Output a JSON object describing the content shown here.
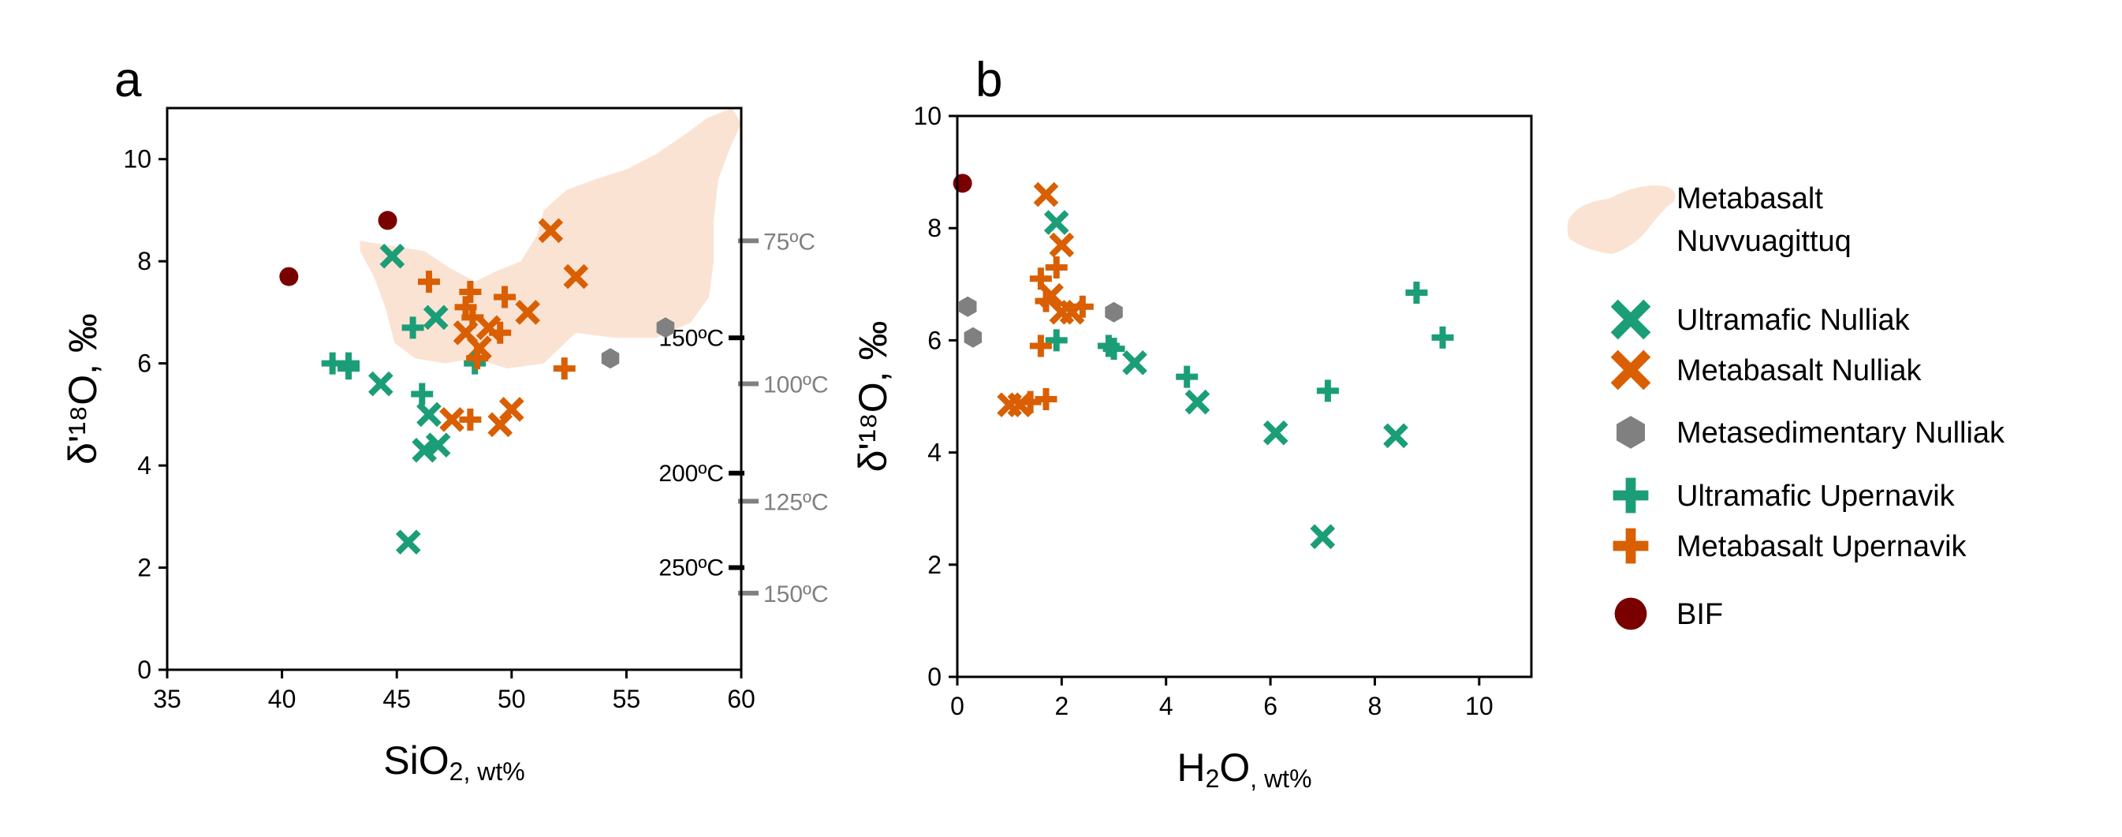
{
  "colors": {
    "ultramafic": "#1b9e77",
    "metabasalt": "#d95f02",
    "metasedimentary": "#808080",
    "bif": "#7a0000",
    "field": "#fbe3d4",
    "temp_major": "#000000",
    "temp_minor": "#808080"
  },
  "chart_data": [
    {
      "panel": "a",
      "type": "scatter",
      "xlabel_main": "SiO",
      "xlabel_sub": "2",
      "xlabel_unit": ", wt%",
      "ylabel": "δ'¹⁸O, ‰",
      "xlim": [
        35,
        60
      ],
      "ylim": [
        0,
        11
      ],
      "xticks": [
        35,
        40,
        45,
        50,
        55,
        60
      ],
      "yticks": [
        0,
        2,
        4,
        6,
        8,
        10
      ],
      "grid": false,
      "field": {
        "name": "Metabasalt Nuvvuagittuq",
        "outline": [
          [
            43.4,
            8.4
          ],
          [
            44.8,
            8.3
          ],
          [
            46.2,
            8.2
          ],
          [
            47.2,
            7.9
          ],
          [
            48.4,
            7.6
          ],
          [
            49.3,
            7.8
          ],
          [
            50.4,
            8.0
          ],
          [
            51.1,
            8.5
          ],
          [
            51.4,
            9.0
          ],
          [
            52.4,
            9.4
          ],
          [
            53.6,
            9.6
          ],
          [
            55.0,
            9.8
          ],
          [
            56.3,
            10.1
          ],
          [
            57.6,
            10.5
          ],
          [
            58.5,
            10.8
          ],
          [
            59.6,
            11.0
          ],
          [
            60.0,
            10.7
          ],
          [
            59.5,
            10.2
          ],
          [
            59.0,
            9.6
          ],
          [
            58.8,
            8.8
          ],
          [
            58.8,
            8.0
          ],
          [
            58.6,
            7.3
          ],
          [
            57.8,
            6.8
          ],
          [
            56.3,
            6.5
          ],
          [
            54.5,
            6.5
          ],
          [
            52.8,
            6.6
          ],
          [
            51.4,
            6.0
          ],
          [
            49.8,
            5.9
          ],
          [
            48.4,
            6.1
          ],
          [
            47.1,
            6.0
          ],
          [
            45.8,
            6.1
          ],
          [
            44.9,
            6.4
          ],
          [
            44.5,
            7.1
          ],
          [
            44.0,
            7.7
          ],
          [
            43.4,
            8.2
          ]
        ]
      },
      "series": [
        {
          "name": "Ultramafic Nulliak",
          "marker": "x",
          "color_key": "ultramafic",
          "points": [
            [
              44.8,
              8.1
            ],
            [
              46.7,
              6.9
            ],
            [
              44.3,
              5.6
            ],
            [
              46.2,
              4.3
            ],
            [
              46.8,
              4.4
            ],
            [
              46.4,
              5.0
            ],
            [
              45.5,
              2.5
            ]
          ]
        },
        {
          "name": "Metabasalt Nulliak",
          "marker": "x",
          "color_key": "metabasalt",
          "points": [
            [
              51.7,
              8.6
            ],
            [
              52.8,
              7.7
            ],
            [
              50.7,
              7.0
            ],
            [
              48.0,
              6.6
            ],
            [
              48.6,
              6.3
            ],
            [
              49.0,
              6.7
            ],
            [
              47.4,
              4.9
            ],
            [
              49.5,
              4.8
            ],
            [
              50.0,
              5.1
            ]
          ]
        },
        {
          "name": "Metasedimentary Nulliak",
          "marker": "hexagon",
          "color_key": "metasedimentary",
          "points": [
            [
              54.3,
              6.1
            ],
            [
              56.7,
              6.7
            ]
          ]
        },
        {
          "name": "Ultramafic Upernavik",
          "marker": "+",
          "color_key": "ultramafic",
          "points": [
            [
              42.2,
              6.0
            ],
            [
              42.9,
              6.0
            ],
            [
              42.9,
              5.9
            ],
            [
              45.7,
              6.7
            ],
            [
              46.1,
              5.4
            ],
            [
              48.4,
              6.0
            ]
          ]
        },
        {
          "name": "Metabasalt Upernavik",
          "marker": "+",
          "color_key": "metabasalt",
          "points": [
            [
              46.4,
              7.6
            ],
            [
              48.2,
              7.4
            ],
            [
              48.0,
              7.1
            ],
            [
              48.3,
              6.9
            ],
            [
              49.7,
              7.3
            ],
            [
              49.5,
              6.6
            ],
            [
              48.5,
              6.1
            ],
            [
              52.3,
              5.9
            ],
            [
              48.2,
              4.9
            ]
          ]
        },
        {
          "name": "BIF",
          "marker": "circle",
          "color_key": "bif",
          "points": [
            [
              40.3,
              7.7
            ],
            [
              44.6,
              8.8
            ]
          ]
        }
      ],
      "temperature_scale": {
        "major": [
          {
            "y": 6.5,
            "label": "150ºC"
          },
          {
            "y": 3.85,
            "label": "200ºC"
          },
          {
            "y": 2.0,
            "label": "250ºC"
          }
        ],
        "minor": [
          {
            "y": 8.4,
            "label": "75ºC"
          },
          {
            "y": 5.6,
            "label": "100ºC"
          },
          {
            "y": 3.3,
            "label": "125ºC"
          },
          {
            "y": 1.5,
            "label": "150ºC"
          }
        ]
      }
    },
    {
      "panel": "b",
      "type": "scatter",
      "xlabel_main": "H",
      "xlabel_sub": "2",
      "xlabel_after": "O",
      "xlabel_unit": ", wt%",
      "ylabel": "δ'¹⁸O, ‰",
      "xlim": [
        0,
        11
      ],
      "ylim": [
        0,
        10
      ],
      "xticks": [
        0,
        2,
        4,
        6,
        8,
        10
      ],
      "yticks": [
        0,
        2,
        4,
        6,
        8,
        10
      ],
      "grid": false,
      "series": [
        {
          "name": "Ultramafic Nulliak",
          "marker": "x",
          "color_key": "ultramafic",
          "points": [
            [
              1.9,
              8.1
            ],
            [
              3.4,
              5.6
            ],
            [
              4.6,
              4.9
            ],
            [
              6.1,
              4.35
            ],
            [
              8.4,
              4.3
            ],
            [
              7.0,
              2.5
            ]
          ]
        },
        {
          "name": "Metabasalt Nulliak",
          "marker": "x",
          "color_key": "metabasalt",
          "points": [
            [
              1.7,
              8.6
            ],
            [
              2.0,
              7.7
            ],
            [
              1.8,
              6.8
            ],
            [
              2.0,
              6.5
            ],
            [
              2.2,
              6.5
            ],
            [
              1.0,
              4.85
            ],
            [
              1.2,
              4.85
            ]
          ]
        },
        {
          "name": "Metasedimentary Nulliak",
          "marker": "hexagon",
          "color_key": "metasedimentary",
          "points": [
            [
              0.2,
              6.6
            ],
            [
              0.3,
              6.05
            ],
            [
              3.0,
              6.5
            ]
          ]
        },
        {
          "name": "Ultramafic Upernavik",
          "marker": "+",
          "color_key": "ultramafic",
          "points": [
            [
              1.9,
              6.0
            ],
            [
              2.9,
              5.9
            ],
            [
              3.0,
              5.85
            ],
            [
              4.4,
              5.35
            ],
            [
              7.1,
              5.1
            ],
            [
              8.8,
              6.85
            ],
            [
              9.3,
              6.05
            ]
          ]
        },
        {
          "name": "Metabasalt Upernavik",
          "marker": "+",
          "color_key": "metabasalt",
          "points": [
            [
              1.6,
              7.1
            ],
            [
              1.9,
              7.3
            ],
            [
              1.7,
              6.7
            ],
            [
              2.4,
              6.6
            ],
            [
              1.6,
              5.9
            ],
            [
              1.7,
              4.95
            ],
            [
              1.4,
              4.9
            ]
          ]
        },
        {
          "name": "BIF",
          "marker": "circle",
          "color_key": "bif",
          "points": [
            [
              0.1,
              8.8
            ]
          ]
        }
      ]
    }
  ],
  "legend": {
    "placement": "right",
    "items": [
      {
        "label_lines": [
          "Metabasalt",
          "Nuvvuagittuq"
        ],
        "marker": "field",
        "color_key": "field"
      },
      {
        "label_lines": [
          "Ultramafic Nulliak"
        ],
        "marker": "x",
        "color_key": "ultramafic"
      },
      {
        "label_lines": [
          "Metabasalt Nulliak"
        ],
        "marker": "x",
        "color_key": "metabasalt"
      },
      {
        "label_lines": [
          "Metasedimentary Nulliak"
        ],
        "marker": "hexagon",
        "color_key": "metasedimentary"
      },
      {
        "label_lines": [
          "Ultramafic Upernavik"
        ],
        "marker": "+",
        "color_key": "ultramafic"
      },
      {
        "label_lines": [
          "Metabasalt Upernavik"
        ],
        "marker": "+",
        "color_key": "metabasalt"
      },
      {
        "label_lines": [
          "BIF"
        ],
        "marker": "circle",
        "color_key": "bif"
      }
    ]
  }
}
